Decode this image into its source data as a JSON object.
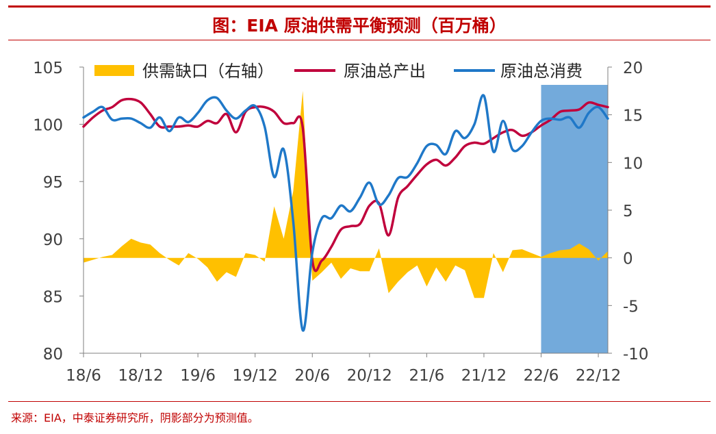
{
  "title": "图：EIA 原油供需平衡预测（百万桶）",
  "footer": "来源：EIA，中泰证券研究所，阴影部分为预测值。",
  "colors": {
    "title": "#c00000",
    "gap": "#ffc000",
    "production": "#c0003c",
    "consumption": "#1f78c8",
    "forecast_shade": "#5b9bd5"
  },
  "chart_data": {
    "type": "line",
    "legend_position": "top",
    "x_ticks": [
      "18/6",
      "18/12",
      "19/6",
      "19/12",
      "20/6",
      "20/12",
      "21/6",
      "21/12",
      "22/6",
      "22/12"
    ],
    "x_tick_months": [
      0,
      6,
      12,
      18,
      24,
      30,
      36,
      42,
      48,
      54
    ],
    "x_range": [
      0,
      55
    ],
    "y_left": {
      "ticks": [
        "105",
        "100",
        "95",
        "90",
        "85",
        "80"
      ],
      "range": [
        80,
        105
      ]
    },
    "y_right": {
      "ticks": [
        "20",
        "15",
        "10",
        "5",
        "0",
        "-5",
        "-10"
      ],
      "range": [
        -10,
        20
      ]
    },
    "forecast_start_month": 48,
    "series": [
      {
        "name": "供需缺口（右轴）",
        "kind": "area",
        "axis": "right",
        "x": [
          0,
          1,
          2,
          3,
          4,
          5,
          6,
          7,
          8,
          9,
          10,
          11,
          12,
          13,
          14,
          15,
          16,
          17,
          18,
          19,
          20,
          21,
          22,
          23,
          24,
          25,
          26,
          27,
          28,
          29,
          30,
          31,
          32,
          33,
          34,
          35,
          36,
          37,
          38,
          39,
          40,
          41,
          42,
          43,
          44,
          45,
          46,
          47,
          48,
          49,
          50,
          51,
          52,
          53,
          54,
          55
        ],
        "values": [
          -0.5,
          -0.2,
          0.1,
          0.3,
          1.2,
          2.0,
          1.6,
          1.4,
          0.5,
          -0.2,
          -0.8,
          0.5,
          -0.1,
          -1.0,
          -2.5,
          -1.5,
          -2.0,
          0.5,
          0.3,
          -0.4,
          5.4,
          2.0,
          7.0,
          17.5,
          -2.4,
          -1.5,
          -0.5,
          -2.2,
          -1.1,
          -1.4,
          -1.4,
          1.0,
          -3.7,
          -2.5,
          -1.5,
          -0.8,
          -3.0,
          -1.0,
          -2.5,
          -0.8,
          -1.3,
          -4.2,
          -4.2,
          0.5,
          -1.5,
          0.8,
          0.9,
          0.5,
          0.1,
          0.5,
          0.8,
          0.9,
          1.5,
          0.9,
          -0.3,
          0.7
        ]
      },
      {
        "name": "原油总产出",
        "kind": "line",
        "axis": "left",
        "x": [
          0,
          1,
          2,
          3,
          4,
          5,
          6,
          7,
          8,
          9,
          10,
          11,
          12,
          13,
          14,
          15,
          16,
          17,
          18,
          19,
          20,
          21,
          22,
          23,
          24,
          25,
          26,
          27,
          28,
          29,
          30,
          31,
          32,
          33,
          34,
          35,
          36,
          37,
          38,
          39,
          40,
          41,
          42,
          43,
          44,
          45,
          46,
          47,
          48,
          49,
          50,
          51,
          52,
          53,
          54,
          55
        ],
        "values": [
          99.8,
          100.6,
          101.2,
          101.5,
          102.1,
          102.2,
          101.9,
          100.9,
          99.8,
          99.8,
          99.8,
          99.9,
          99.8,
          100.3,
          100.1,
          100.9,
          99.3,
          101.1,
          101.5,
          101.5,
          101.1,
          100.1,
          100.1,
          99.7,
          88.1,
          88.1,
          89.3,
          90.8,
          91.1,
          91.3,
          92.9,
          93.1,
          90.3,
          93.6,
          94.6,
          95.6,
          96.5,
          96.9,
          96.4,
          97.1,
          98.1,
          98.4,
          98.3,
          98.8,
          99.3,
          99.5,
          99.0,
          99.3,
          99.9,
          100.4,
          101.1,
          101.2,
          101.3,
          101.9,
          101.7,
          101.5
        ]
      },
      {
        "name": "原油总消费",
        "kind": "line",
        "axis": "left",
        "x": [
          0,
          1,
          2,
          3,
          4,
          5,
          6,
          7,
          8,
          9,
          10,
          11,
          12,
          13,
          14,
          15,
          16,
          17,
          18,
          19,
          20,
          21,
          22,
          23,
          24,
          25,
          26,
          27,
          28,
          29,
          30,
          31,
          32,
          33,
          34,
          35,
          36,
          37,
          38,
          39,
          40,
          41,
          42,
          43,
          44,
          45,
          46,
          47,
          48,
          49,
          50,
          51,
          52,
          53,
          54,
          55
        ],
        "values": [
          100.6,
          101.1,
          101.5,
          100.4,
          100.5,
          100.5,
          100.1,
          99.7,
          100.6,
          99.4,
          100.6,
          100.2,
          101.0,
          102.1,
          102.3,
          101.2,
          100.5,
          101.2,
          101.6,
          99.8,
          95.4,
          97.8,
          91.5,
          82.0,
          88.8,
          91.8,
          91.8,
          92.9,
          92.4,
          93.6,
          94.9,
          93.0,
          93.8,
          95.3,
          95.4,
          96.6,
          98.1,
          98.2,
          97.4,
          99.4,
          98.8,
          100.0,
          102.5,
          97.6,
          100.3,
          97.8,
          98.1,
          99.3,
          100.3,
          100.5,
          100.4,
          100.6,
          99.7,
          101.0,
          101.5,
          100.5
        ]
      }
    ]
  }
}
